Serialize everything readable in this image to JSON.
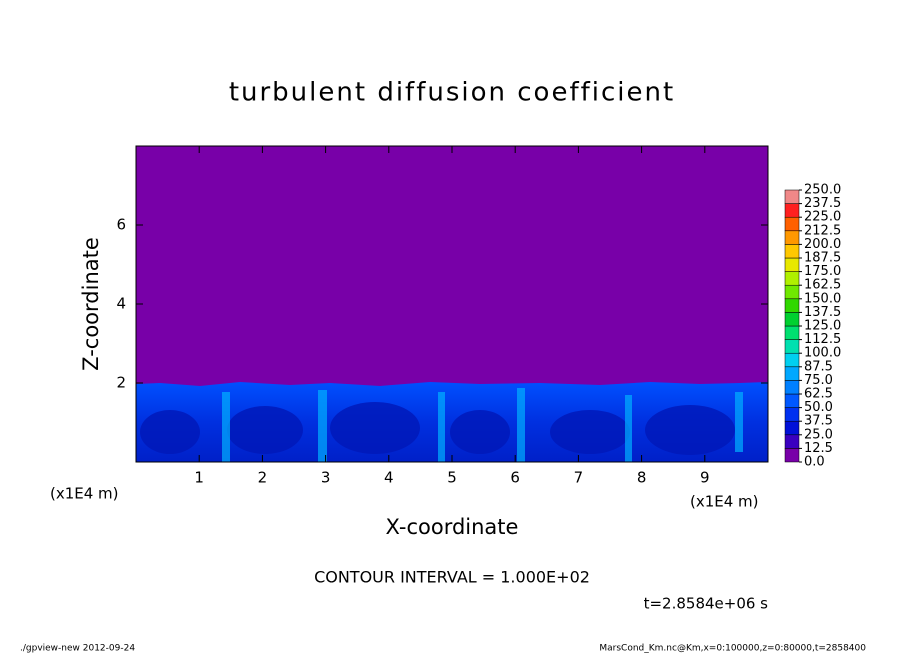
{
  "chart_data": {
    "type": "contour",
    "title": "turbulent diffusion coefficient",
    "x_label": "X-coordinate",
    "y_label": "Z-coordinate",
    "x_unit_label": "(x1E4 m)",
    "xlim": [
      0,
      10
    ],
    "xticks": [
      1,
      2,
      3,
      4,
      5,
      6,
      7,
      8,
      9
    ],
    "ylim": [
      0,
      8
    ],
    "yticks": [
      2,
      4,
      6
    ],
    "contour_note": "CONTOUR INTERVAL = 1.000E+02",
    "time_label": "t=2.8584e+06 s",
    "footer_left": "./gpview-new  2012-09-24",
    "footer_right": "MarsCond_Km.nc@Km,x=0:100000,z=0:80000,t=2858400",
    "colorbar_levels": [
      {
        "value": 0,
        "label": "0.0"
      },
      {
        "value": 12.5,
        "label": "12.5"
      },
      {
        "value": 25,
        "label": "25.0"
      },
      {
        "value": 37.5,
        "label": "37.5"
      },
      {
        "value": 50,
        "label": "50.0"
      },
      {
        "value": 62.5,
        "label": "62.5"
      },
      {
        "value": 75,
        "label": "75.0"
      },
      {
        "value": 87.5,
        "label": "87.5"
      },
      {
        "value": 100,
        "label": "100.0"
      },
      {
        "value": 112.5,
        "label": "112.5"
      },
      {
        "value": 125,
        "label": "125.0"
      },
      {
        "value": 137.5,
        "label": "137.5"
      },
      {
        "value": 150,
        "label": "150.0"
      },
      {
        "value": 162.5,
        "label": "162.5"
      },
      {
        "value": 175,
        "label": "175.0"
      },
      {
        "value": 187.5,
        "label": "187.5"
      },
      {
        "value": 200,
        "label": "200.0"
      },
      {
        "value": 212.5,
        "label": "212.5"
      },
      {
        "value": 225,
        "label": "225.0"
      },
      {
        "value": 237.5,
        "label": "237.5"
      },
      {
        "value": 250,
        "label": "250.0"
      }
    ],
    "colorbar_colors": [
      "#7800a8",
      "#3a00c0",
      "#0010d8",
      "#0030f0",
      "#0058ff",
      "#0080ff",
      "#00a8ff",
      "#00d0f0",
      "#00e0b0",
      "#00e070",
      "#00d030",
      "#30d800",
      "#70e800",
      "#b0f000",
      "#e8e800",
      "#ffc800",
      "#ff9800",
      "#ff6000",
      "#ff2020",
      "#f08888"
    ]
  }
}
